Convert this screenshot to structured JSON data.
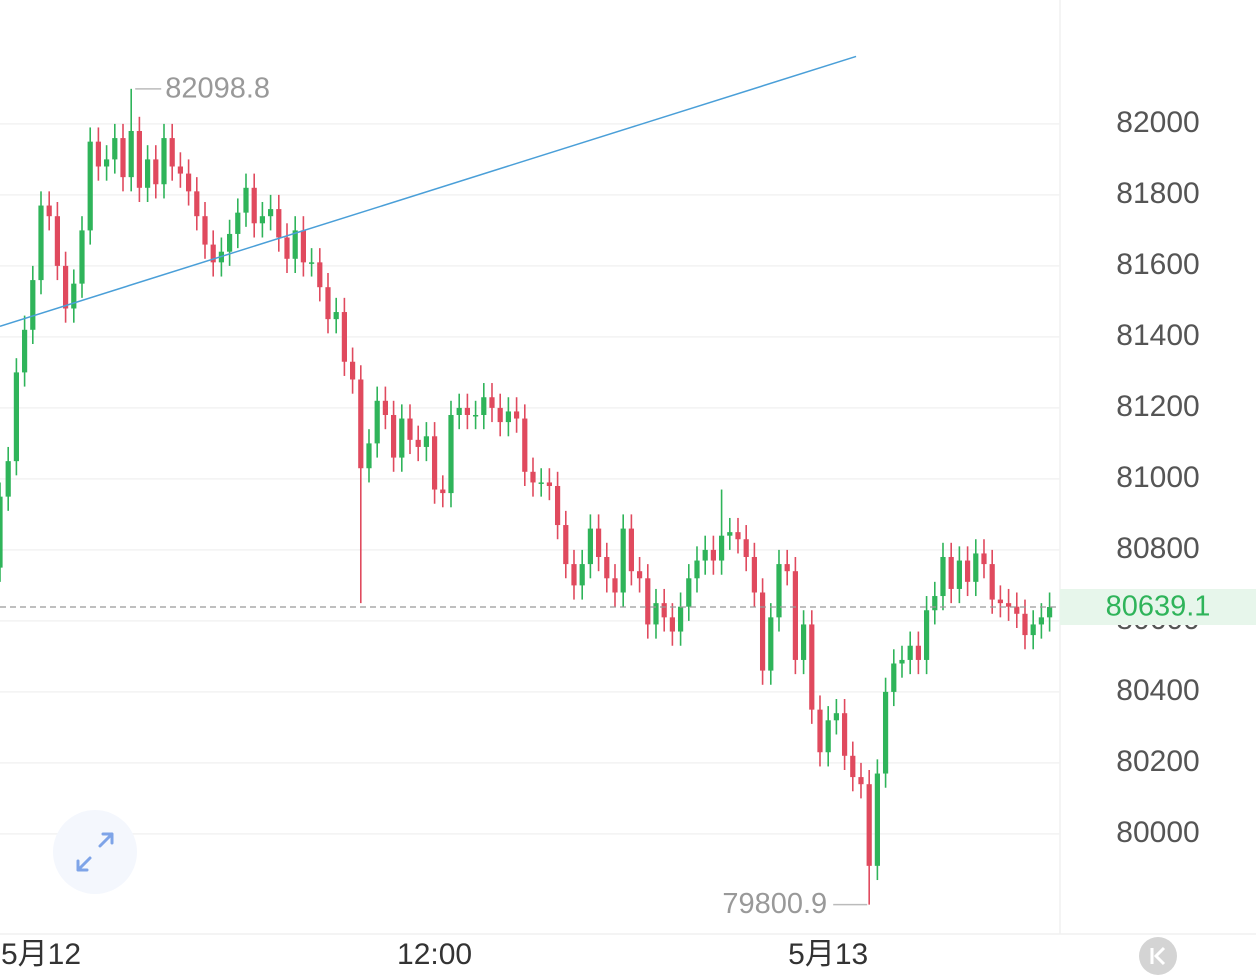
{
  "chart_data": {
    "type": "candlestick",
    "up_color": "#2fb45a",
    "down_color": "#e04a5e",
    "grid": true,
    "xlim": [
      0,
      129.27
    ],
    "ylim": [
      79718,
      82349
    ],
    "xticks": [
      {
        "value": 5,
        "label": "5月12"
      },
      {
        "value": 53,
        "label": "12:00"
      },
      {
        "value": 101,
        "label": "5月13"
      }
    ],
    "yticks": [
      80000,
      80200,
      80400,
      80600,
      80800,
      81000,
      81200,
      81400,
      81600,
      81800,
      82000
    ],
    "open": [
      80750,
      80950,
      81050,
      81300,
      81420,
      81560,
      81770,
      81740,
      81600,
      81480,
      81550,
      81700,
      81950,
      81880,
      81900,
      81960,
      81850,
      81980,
      81820,
      81900,
      81830,
      81960,
      81880,
      81860,
      81810,
      81740,
      81660,
      81610,
      81640,
      81690,
      81750,
      81820,
      81720,
      81740,
      81760,
      81680,
      81620,
      81700,
      81610,
      81610,
      81540,
      81450,
      81470,
      81330,
      81280,
      81030,
      81100,
      81220,
      81180,
      81060,
      81170,
      81110,
      81090,
      81120,
      80970,
      80960,
      81180,
      81200,
      81180,
      81180,
      81230,
      81200,
      81160,
      81190,
      81170,
      81020,
      80990,
      80990,
      80980,
      80870,
      80760,
      80700,
      80760,
      80860,
      80780,
      80720,
      80680,
      80860,
      80740,
      80720,
      80590,
      80650,
      80610,
      80570,
      80640,
      80720,
      80770,
      80800,
      80770,
      80840,
      80850,
      80830,
      80780,
      80680,
      80460,
      80610,
      80760,
      80740,
      80490,
      80590,
      80350,
      80230,
      80320,
      80340,
      80220,
      80160,
      80140,
      79910,
      80170,
      80400,
      80480,
      80490,
      80530,
      80490,
      80630,
      80670,
      80780,
      80690,
      80770,
      80710,
      80790,
      80760,
      80660,
      80650,
      80640,
      80620,
      80560,
      80590,
      80610
    ],
    "high": [
      80990,
      81090,
      81340,
      81460,
      81600,
      81810,
      81810,
      81780,
      81640,
      81590,
      81740,
      81990,
      81990,
      81940,
      82000,
      82000,
      82098.8,
      82020,
      81940,
      81940,
      82000,
      82000,
      81920,
      81900,
      81850,
      81780,
      81700,
      81680,
      81730,
      81790,
      81860,
      81860,
      81780,
      81800,
      81800,
      81720,
      81740,
      81740,
      81650,
      81650,
      81580,
      81510,
      81510,
      81370,
      81320,
      81140,
      81260,
      81260,
      81220,
      81210,
      81210,
      81150,
      81160,
      81160,
      81010,
      81220,
      81240,
      81240,
      81220,
      81270,
      81270,
      81240,
      81230,
      81230,
      81210,
      81060,
      81030,
      81030,
      81020,
      80910,
      80800,
      80800,
      80900,
      80900,
      80820,
      80760,
      80900,
      80900,
      80780,
      80760,
      80690,
      80690,
      80650,
      80680,
      80760,
      80810,
      80840,
      80840,
      80970,
      80890,
      80890,
      80870,
      80820,
      80720,
      80650,
      80800,
      80800,
      80780,
      80630,
      80630,
      80390,
      80360,
      80380,
      80380,
      80260,
      80200,
      80180,
      80210,
      80440,
      80520,
      80530,
      80570,
      80570,
      80670,
      80710,
      80820,
      80820,
      80810,
      80810,
      80830,
      80830,
      80800,
      80700,
      80690,
      80680,
      80660,
      80630,
      80650,
      80680
    ],
    "low": [
      80710,
      80910,
      81010,
      81260,
      81380,
      81520,
      81700,
      81560,
      81440,
      81440,
      81510,
      81660,
      81840,
      81840,
      81860,
      81810,
      81810,
      81780,
      81780,
      81790,
      81790,
      81840,
      81820,
      81770,
      81700,
      81620,
      81570,
      81570,
      81600,
      81650,
      81710,
      81680,
      81680,
      81700,
      81640,
      81580,
      81580,
      81570,
      81570,
      81500,
      81410,
      81410,
      81290,
      81240,
      80650,
      80990,
      81060,
      81140,
      81020,
      81020,
      81070,
      81050,
      81050,
      80930,
      80920,
      80920,
      81140,
      81140,
      81140,
      81140,
      81160,
      81120,
      81120,
      81130,
      80980,
      80950,
      80950,
      80940,
      80830,
      80720,
      80660,
      80660,
      80720,
      80740,
      80680,
      80640,
      80640,
      80700,
      80680,
      80550,
      80550,
      80570,
      80530,
      80530,
      80600,
      80680,
      80730,
      80730,
      80730,
      80800,
      80790,
      80740,
      80640,
      80420,
      80420,
      80570,
      80700,
      80450,
      80450,
      80310,
      80190,
      80190,
      80280,
      80180,
      80120,
      80100,
      79800.9,
      79870,
      80130,
      80360,
      80440,
      80450,
      80450,
      80450,
      80590,
      80630,
      80650,
      80650,
      80670,
      80670,
      80720,
      80620,
      80610,
      80600,
      80580,
      80520,
      80520,
      80550,
      80570
    ],
    "close": [
      80950,
      81050,
      81300,
      81420,
      81560,
      81770,
      81740,
      81600,
      81480,
      81550,
      81700,
      81950,
      81880,
      81900,
      81960,
      81850,
      81980,
      81820,
      81900,
      81830,
      81960,
      81880,
      81860,
      81810,
      81740,
      81660,
      81610,
      81640,
      81690,
      81750,
      81820,
      81720,
      81740,
      81760,
      81680,
      81620,
      81700,
      81610,
      81610,
      81540,
      81450,
      81470,
      81330,
      81280,
      81030,
      81100,
      81220,
      81180,
      81060,
      81170,
      81110,
      81090,
      81120,
      80970,
      80960,
      81180,
      81200,
      81180,
      81180,
      81230,
      81200,
      81160,
      81190,
      81170,
      81020,
      80990,
      80990,
      80980,
      80870,
      80760,
      80700,
      80760,
      80860,
      80780,
      80720,
      80680,
      80860,
      80740,
      80720,
      80590,
      80650,
      80610,
      80570,
      80640,
      80720,
      80770,
      80800,
      80770,
      80840,
      80850,
      80830,
      80780,
      80680,
      80460,
      80610,
      80760,
      80740,
      80490,
      80590,
      80350,
      80230,
      80320,
      80340,
      80220,
      80160,
      80140,
      79910,
      80170,
      80400,
      80480,
      80490,
      80530,
      80490,
      80630,
      80670,
      80780,
      80690,
      80770,
      80710,
      80790,
      80760,
      80660,
      80650,
      80640,
      80620,
      80560,
      80590,
      80610,
      80639.1
    ],
    "trendline": {
      "x": [
        0,
        104.4
      ],
      "y": [
        81430,
        82190
      ],
      "color": "#4a9fd8"
    }
  }
}
